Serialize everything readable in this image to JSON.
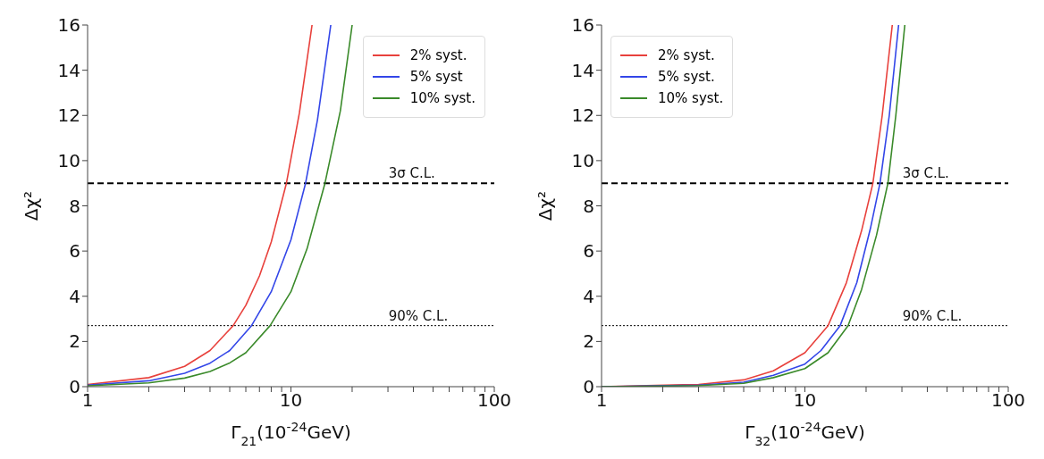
{
  "chart_data": [
    {
      "type": "line",
      "xlabel": "Γ$_{21}$(10$^{-24}$GeV)",
      "ylabel": "Δχ²",
      "log": "x",
      "xlim": [
        1,
        100
      ],
      "ylim": [
        0,
        16
      ],
      "xticks": [
        1,
        {
          "value": 2,
          "label": null
        },
        {
          "value": 3,
          "label": null
        },
        {
          "value": 4,
          "label": null
        },
        {
          "value": 5,
          "label": null
        },
        {
          "value": 6,
          "label": null
        },
        {
          "value": 7,
          "label": null
        },
        {
          "value": 8,
          "label": null
        },
        {
          "value": 9,
          "label": null
        },
        10,
        {
          "value": 20,
          "label": null
        },
        {
          "value": 30,
          "label": null
        },
        {
          "value": 40,
          "label": null
        },
        {
          "value": 50,
          "label": null
        },
        {
          "value": 60,
          "label": null
        },
        {
          "value": 70,
          "label": null
        },
        {
          "value": 80,
          "label": null
        },
        {
          "value": 90,
          "label": null
        },
        100
      ],
      "yticks": [
        0,
        2,
        4,
        6,
        8,
        10,
        12,
        14,
        16
      ],
      "grid": false,
      "legend": "top right",
      "series": [
        {
          "name": "2% syst.",
          "color": "#e8413c",
          "x": [
            1,
            2,
            3,
            4,
            5.2,
            6,
            7,
            8,
            9.5,
            11,
            12.7
          ],
          "values": [
            0.1,
            0.4,
            0.9,
            1.6,
            2.7,
            3.6,
            4.9,
            6.4,
            9,
            12.1,
            16
          ]
        },
        {
          "name": "5% syst",
          "color": "#3346e8",
          "x": [
            1,
            2,
            3,
            4,
            5,
            6.4,
            8,
            10,
            11.8,
            13.5,
            15.7
          ],
          "values": [
            0.07,
            0.26,
            0.59,
            1.04,
            1.6,
            2.7,
            4.2,
            6.5,
            9,
            11.8,
            16
          ]
        },
        {
          "name": "10% syst.",
          "color": "#3a8a2a",
          "x": [
            1,
            2,
            3,
            4,
            5,
            6,
            7.9,
            10,
            12,
            14.7,
            17.5,
            20
          ],
          "values": [
            0.04,
            0.17,
            0.38,
            0.67,
            1.05,
            1.5,
            2.7,
            4.2,
            6.1,
            9,
            12.2,
            16
          ]
        }
      ],
      "ref_lines": [
        {
          "axis": "y",
          "value": 9,
          "label": "3σ C.L.",
          "color": "#000000",
          "line_style": "dashed"
        },
        {
          "axis": "y",
          "value": 2.7,
          "label": "90% C.L.",
          "color": "#000000",
          "line_style": "dotted"
        }
      ]
    },
    {
      "type": "line",
      "xlabel": "Γ$_{32}$(10$^{-24}$GeV)",
      "ylabel": "Δχ²",
      "log": "x",
      "xlim": [
        1,
        100
      ],
      "ylim": [
        0,
        16
      ],
      "xticks": [
        1,
        {
          "value": 2,
          "label": null
        },
        {
          "value": 3,
          "label": null
        },
        {
          "value": 4,
          "label": null
        },
        {
          "value": 5,
          "label": null
        },
        {
          "value": 6,
          "label": null
        },
        {
          "value": 7,
          "label": null
        },
        {
          "value": 8,
          "label": null
        },
        {
          "value": 9,
          "label": null
        },
        10,
        {
          "value": 20,
          "label": null
        },
        {
          "value": 30,
          "label": null
        },
        {
          "value": 40,
          "label": null
        },
        {
          "value": 50,
          "label": null
        },
        {
          "value": 60,
          "label": null
        },
        {
          "value": 70,
          "label": null
        },
        {
          "value": 80,
          "label": null
        },
        {
          "value": 90,
          "label": null
        },
        100
      ],
      "yticks": [
        0,
        2,
        4,
        6,
        8,
        10,
        12,
        14,
        16
      ],
      "grid": false,
      "legend": "top left",
      "series": [
        {
          "name": "2% syst.",
          "color": "#e8413c",
          "x": [
            1,
            3,
            5,
            7,
            10,
            13,
            16,
            19,
            21.6,
            24,
            26.9
          ],
          "values": [
            0,
            0.1,
            0.3,
            0.7,
            1.5,
            2.7,
            4.6,
            6.9,
            9,
            12,
            16
          ]
        },
        {
          "name": "5% syst.",
          "color": "#3346e8",
          "x": [
            1,
            3,
            5,
            7,
            10,
            12,
            14.9,
            18,
            21,
            23.4,
            26,
            28.9
          ],
          "values": [
            0,
            0.07,
            0.2,
            0.5,
            1,
            1.6,
            2.7,
            4.6,
            7,
            9,
            12,
            16
          ]
        },
        {
          "name": "10% syst.",
          "color": "#3a8a2a",
          "x": [
            1,
            3,
            5,
            7,
            10,
            13,
            16.3,
            19,
            22.5,
            25.6,
            28,
            31
          ],
          "values": [
            0,
            0.05,
            0.15,
            0.4,
            0.8,
            1.5,
            2.7,
            4.3,
            6.7,
            9,
            12,
            16
          ]
        }
      ],
      "ref_lines": [
        {
          "axis": "y",
          "value": 9,
          "label": "3σ C.L.",
          "color": "#000000",
          "line_style": "dashed"
        },
        {
          "axis": "y",
          "value": 2.7,
          "label": "90% C.L.",
          "color": "#000000",
          "line_style": "dotted"
        }
      ]
    }
  ]
}
